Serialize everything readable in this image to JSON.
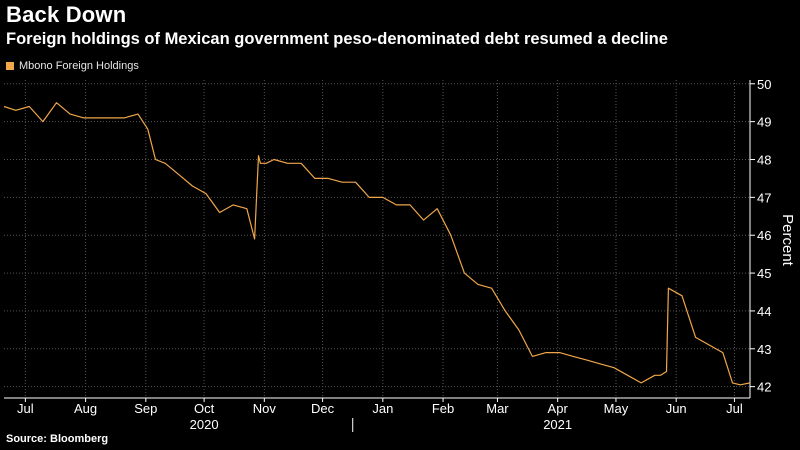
{
  "header": {
    "title": "Back Down",
    "subtitle": "Foreign holdings of Mexican government peso-denominated debt resumed a decline"
  },
  "footer": {
    "source": "Source: Bloomberg"
  },
  "colors": {
    "background": "#000000",
    "series": "#f0a64a",
    "grid": "#555555",
    "text": "#ffffff"
  },
  "chart_data": {
    "type": "line",
    "title": "Back Down",
    "subtitle": "Foreign holdings of Mexican government peso-denominated debt resumed a decline",
    "xlabel": "",
    "ylabel": "Percent",
    "ylim": [
      41.7,
      50.1
    ],
    "yticks": [
      42,
      43,
      44,
      45,
      46,
      47,
      48,
      49,
      50
    ],
    "y_axis_side": "right",
    "grid": true,
    "legend": {
      "position": "top-left",
      "entries": [
        "Mbono Foreign Holdings"
      ]
    },
    "x_ticks": [
      {
        "label": "Jul",
        "date": "2020-07-15"
      },
      {
        "label": "Aug",
        "date": "2020-08-15"
      },
      {
        "label": "Sep",
        "date": "2020-09-15"
      },
      {
        "label": "Oct",
        "date": "2020-10-15"
      },
      {
        "label": "Nov",
        "date": "2020-11-15"
      },
      {
        "label": "Dec",
        "date": "2020-12-15"
      },
      {
        "label": "Jan",
        "date": "2021-01-15"
      },
      {
        "label": "Feb",
        "date": "2021-02-15"
      },
      {
        "label": "Mar",
        "date": "2021-03-15"
      },
      {
        "label": "Apr",
        "date": "2021-04-15"
      },
      {
        "label": "May",
        "date": "2021-05-15"
      },
      {
        "label": "Jun",
        "date": "2021-06-15"
      },
      {
        "label": "Jul",
        "date": "2021-07-15"
      }
    ],
    "year_labels": [
      {
        "label": "2020",
        "date": "2020-10-15"
      },
      {
        "label": "2021",
        "date": "2021-04-15"
      }
    ],
    "xlim": [
      "2020-07-04",
      "2021-07-23"
    ],
    "series": [
      {
        "name": "Mbono Foreign Holdings",
        "x": [
          "2020-07-04",
          "2020-07-10",
          "2020-07-17",
          "2020-07-24",
          "2020-07-31",
          "2020-08-07",
          "2020-08-14",
          "2020-08-21",
          "2020-08-28",
          "2020-09-04",
          "2020-09-11",
          "2020-09-16",
          "2020-09-20",
          "2020-09-25",
          "2020-10-02",
          "2020-10-09",
          "2020-10-16",
          "2020-10-23",
          "2020-10-30",
          "2020-11-06",
          "2020-11-10",
          "2020-11-12",
          "2020-11-13",
          "2020-11-16",
          "2020-11-20",
          "2020-11-27",
          "2020-12-04",
          "2020-12-11",
          "2020-12-18",
          "2020-12-25",
          "2021-01-01",
          "2021-01-08",
          "2021-01-15",
          "2021-01-22",
          "2021-01-29",
          "2021-02-05",
          "2021-02-12",
          "2021-02-19",
          "2021-02-26",
          "2021-03-05",
          "2021-03-12",
          "2021-03-19",
          "2021-03-26",
          "2021-04-02",
          "2021-04-09",
          "2021-04-16",
          "2021-04-23",
          "2021-04-30",
          "2021-05-07",
          "2021-05-14",
          "2021-05-21",
          "2021-05-28",
          "2021-06-04",
          "2021-06-07",
          "2021-06-10",
          "2021-06-11",
          "2021-06-18",
          "2021-06-25",
          "2021-07-02",
          "2021-07-09",
          "2021-07-14",
          "2021-07-18",
          "2021-07-23"
        ],
        "values": [
          49.4,
          49.3,
          49.4,
          49.0,
          49.5,
          49.2,
          49.1,
          49.1,
          49.1,
          49.1,
          49.2,
          48.8,
          48.0,
          47.9,
          47.6,
          47.3,
          47.1,
          46.6,
          46.8,
          46.7,
          45.9,
          48.1,
          47.9,
          47.9,
          48.0,
          47.9,
          47.9,
          47.5,
          47.5,
          47.4,
          47.4,
          47.0,
          47.0,
          46.8,
          46.8,
          46.4,
          46.7,
          46.0,
          45.0,
          44.7,
          44.6,
          44.0,
          43.5,
          42.8,
          42.9,
          42.9,
          42.8,
          42.7,
          42.6,
          42.5,
          42.3,
          42.1,
          42.3,
          42.3,
          42.4,
          44.6,
          44.4,
          43.3,
          43.1,
          42.9,
          42.1,
          42.05,
          42.1
        ]
      }
    ]
  }
}
